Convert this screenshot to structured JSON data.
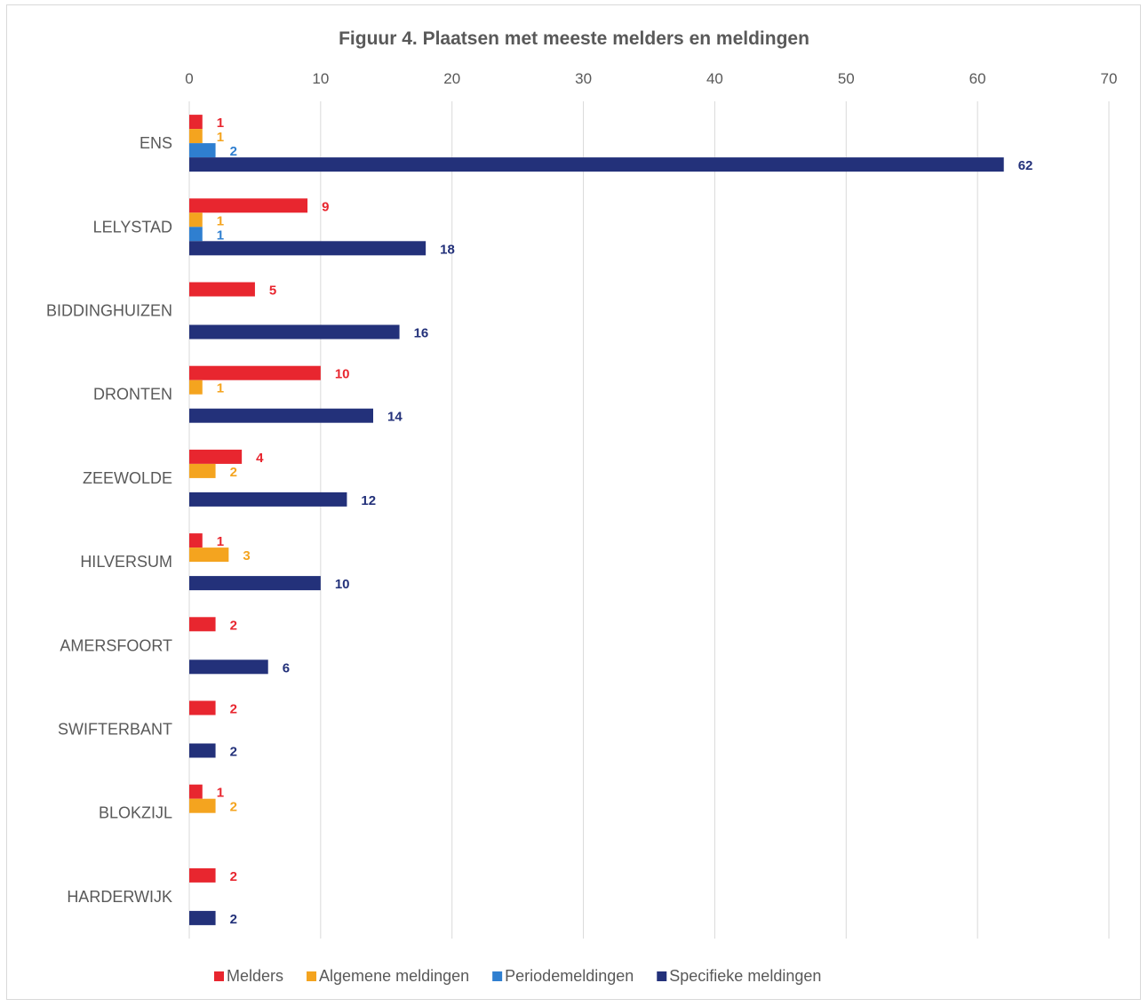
{
  "chart_data": {
    "type": "bar",
    "orientation": "horizontal",
    "title": "Figuur 4. Plaatsen met meeste melders en meldingen",
    "xlabel": "",
    "ylabel": "",
    "xlim": [
      0,
      70
    ],
    "x_ticks": [
      "0",
      "10",
      "20",
      "30",
      "40",
      "50",
      "60",
      "70"
    ],
    "x_axis_position": "top",
    "grid": true,
    "legend_position": "bottom",
    "categories": [
      "ENS",
      "LELYSTAD",
      "BIDDINGHUIZEN",
      "DRONTEN",
      "ZEEWOLDE",
      "HILVERSUM",
      "AMERSFOORT",
      "SWIFTERBANT",
      "BLOKZIJL",
      "HARDERWIJK"
    ],
    "series": [
      {
        "name": "Melders",
        "color": "#e8262f",
        "values": [
          1,
          9,
          5,
          10,
          4,
          1,
          2,
          2,
          1,
          2
        ]
      },
      {
        "name": "Algemene meldingen",
        "color": "#f4a41f",
        "values": [
          1,
          1,
          null,
          1,
          2,
          3,
          null,
          null,
          2,
          null
        ]
      },
      {
        "name": "Periodemeldingen",
        "color": "#2f7fd0",
        "values": [
          2,
          1,
          null,
          null,
          null,
          null,
          null,
          null,
          null,
          null
        ]
      },
      {
        "name": "Specifieke meldingen",
        "color": "#23317a",
        "values": [
          62,
          18,
          16,
          14,
          12,
          10,
          6,
          2,
          null,
          2
        ]
      }
    ]
  }
}
